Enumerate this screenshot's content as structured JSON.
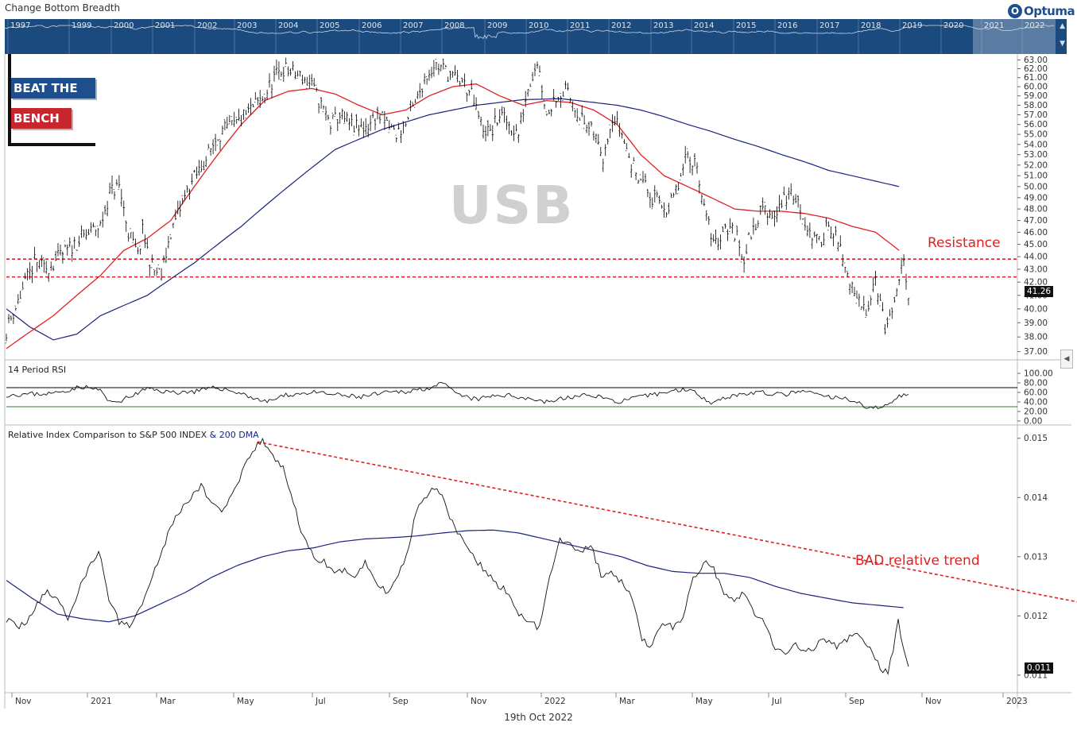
{
  "header": {
    "title": "Change Bottom Breadth",
    "logo_text": "Optuma",
    "logo_glyph": "O",
    "navigator_years": [
      "1997",
      "1999",
      "2000",
      "2001",
      "2002",
      "2003",
      "2004",
      "2005",
      "2006",
      "2007",
      "2008",
      "2009",
      "2010",
      "2011",
      "2012",
      "2013",
      "2014",
      "2015",
      "2016",
      "2017",
      "2018",
      "2019",
      "2020",
      "2021",
      "2022"
    ]
  },
  "branding": {
    "line1": "BEAT THE",
    "line2": "BENCH"
  },
  "colors": {
    "navbar": "#1b4a7e",
    "price": "#000000",
    "ma_short": "#e02020",
    "ma_long": "#1a237e",
    "resistance": "#e02020",
    "rsi_upper": "#000000",
    "rsi_lower": "#2e7d32"
  },
  "chart_data": [
    {
      "type": "line",
      "symbol": "USB",
      "price_tag": "41.26",
      "y_ticks": [
        "63.00",
        "62.00",
        "61.00",
        "60.00",
        "59.00",
        "58.00",
        "57.00",
        "56.00",
        "55.00",
        "54.00",
        "53.00",
        "52.00",
        "51.00",
        "50.00",
        "49.00",
        "48.00",
        "47.00",
        "46.00",
        "45.00",
        "44.00",
        "43.00",
        "42.00",
        "41.00",
        "40.00",
        "39.00",
        "38.00",
        "37.00"
      ],
      "ylim": [
        36.5,
        63.5
      ],
      "log_scale": true,
      "resistance_levels": [
        43.8,
        42.4
      ],
      "annotation": "Resistance",
      "anchors": [
        [
          0,
          38.5
        ],
        [
          3,
          41
        ],
        [
          6,
          43.5
        ],
        [
          8,
          43
        ],
        [
          10,
          43.5
        ],
        [
          13,
          44.5
        ],
        [
          16,
          45.5
        ],
        [
          20,
          46.5
        ],
        [
          22,
          49.5
        ],
        [
          24,
          50
        ],
        [
          26,
          46
        ],
        [
          28,
          44
        ],
        [
          29,
          46
        ],
        [
          31,
          43
        ],
        [
          33,
          42.5
        ],
        [
          35,
          46
        ],
        [
          37,
          48
        ],
        [
          39,
          50
        ],
        [
          41,
          51.5
        ],
        [
          43,
          53
        ],
        [
          45,
          55
        ],
        [
          47,
          55.5
        ],
        [
          49,
          56
        ],
        [
          51,
          57
        ],
        [
          53,
          58
        ],
        [
          55,
          59
        ],
        [
          57,
          61
        ],
        [
          59,
          62
        ],
        [
          61,
          61.5
        ],
        [
          63,
          61
        ],
        [
          65,
          60
        ],
        [
          67,
          58
        ],
        [
          69,
          56
        ],
        [
          71,
          57
        ],
        [
          73,
          56
        ],
        [
          75,
          55.5
        ],
        [
          77,
          56
        ],
        [
          79,
          57
        ],
        [
          81,
          56
        ],
        [
          83,
          55
        ],
        [
          85,
          56
        ],
        [
          87,
          58
        ],
        [
          89,
          61
        ],
        [
          91,
          62.5
        ],
        [
          93,
          62
        ],
        [
          95,
          61
        ],
        [
          97,
          60.5
        ],
        [
          99,
          59
        ],
        [
          101,
          56
        ],
        [
          103,
          55
        ],
        [
          105,
          57
        ],
        [
          107,
          56
        ],
        [
          109,
          55
        ],
        [
          111,
          60
        ],
        [
          113,
          63
        ],
        [
          115,
          57
        ],
        [
          117,
          59
        ],
        [
          119,
          59.5
        ],
        [
          121,
          58
        ],
        [
          123,
          56
        ],
        [
          125,
          55
        ],
        [
          127,
          53
        ],
        [
          129,
          57
        ],
        [
          131,
          55
        ],
        [
          133,
          52
        ],
        [
          135,
          51
        ],
        [
          137,
          49
        ],
        [
          139,
          48.5
        ],
        [
          141,
          48
        ],
        [
          143,
          50
        ],
        [
          145,
          53
        ],
        [
          147,
          52
        ],
        [
          149,
          47
        ],
        [
          151,
          45
        ],
        [
          153,
          46.5
        ],
        [
          155,
          46
        ],
        [
          157,
          44
        ],
        [
          159,
          46.5
        ],
        [
          161,
          48
        ],
        [
          163,
          47.5
        ],
        [
          165,
          48.5
        ],
        [
          167,
          49.5
        ],
        [
          169,
          48
        ],
        [
          171,
          46
        ],
        [
          173,
          45
        ],
        [
          175,
          47
        ],
        [
          177,
          45
        ],
        [
          179,
          42.5
        ],
        [
          181,
          40.5
        ],
        [
          183,
          40
        ],
        [
          185,
          42.5
        ],
        [
          187,
          38.5
        ],
        [
          189,
          40
        ],
        [
          191,
          43.8
        ],
        [
          192,
          41.26
        ]
      ],
      "ma50_anchors": [
        [
          0,
          37.2
        ],
        [
          10,
          39.5
        ],
        [
          20,
          42.5
        ],
        [
          25,
          44.5
        ],
        [
          30,
          45.5
        ],
        [
          35,
          47
        ],
        [
          40,
          50
        ],
        [
          45,
          53
        ],
        [
          50,
          56
        ],
        [
          55,
          58.5
        ],
        [
          60,
          59.5
        ],
        [
          65,
          59.8
        ],
        [
          70,
          59.2
        ],
        [
          75,
          58
        ],
        [
          80,
          57
        ],
        [
          85,
          57.5
        ],
        [
          90,
          59
        ],
        [
          95,
          60
        ],
        [
          100,
          60.3
        ],
        [
          105,
          59
        ],
        [
          110,
          58
        ],
        [
          115,
          58.5
        ],
        [
          120,
          58.3
        ],
        [
          125,
          57.5
        ],
        [
          130,
          56
        ],
        [
          135,
          53
        ],
        [
          140,
          51
        ],
        [
          145,
          50
        ],
        [
          150,
          49
        ],
        [
          155,
          48
        ],
        [
          160,
          47.8
        ],
        [
          165,
          47.8
        ],
        [
          170,
          47.6
        ],
        [
          175,
          47.2
        ],
        [
          180,
          46.5
        ],
        [
          185,
          46
        ],
        [
          190,
          44.5
        ]
      ],
      "ma200_anchors": [
        [
          0,
          40
        ],
        [
          5,
          38.7
        ],
        [
          10,
          37.8
        ],
        [
          15,
          38.2
        ],
        [
          20,
          39.5
        ],
        [
          30,
          41
        ],
        [
          40,
          43.5
        ],
        [
          50,
          46.5
        ],
        [
          60,
          50
        ],
        [
          70,
          53.5
        ],
        [
          80,
          55.5
        ],
        [
          90,
          57
        ],
        [
          100,
          58
        ],
        [
          110,
          58.6
        ],
        [
          118,
          58.7
        ],
        [
          125,
          58.3
        ],
        [
          130,
          58
        ],
        [
          135,
          57.5
        ],
        [
          140,
          56.8
        ],
        [
          145,
          56
        ],
        [
          150,
          55.3
        ],
        [
          155,
          54.5
        ],
        [
          160,
          53.8
        ],
        [
          165,
          53
        ],
        [
          170,
          52.3
        ],
        [
          175,
          51.5
        ],
        [
          180,
          51
        ],
        [
          185,
          50.5
        ],
        [
          190,
          50
        ]
      ]
    },
    {
      "type": "line",
      "title": "14 Period RSI",
      "y_ticks": [
        "100.00",
        "80.00",
        "60.00",
        "40.00",
        "20.00",
        "0.00"
      ],
      "ylim": [
        0,
        100
      ],
      "thresholds": [
        70,
        30
      ],
      "anchors": [
        [
          0,
          55
        ],
        [
          10,
          58
        ],
        [
          16,
          72
        ],
        [
          20,
          65
        ],
        [
          22,
          38
        ],
        [
          25,
          45
        ],
        [
          30,
          68
        ],
        [
          35,
          60
        ],
        [
          40,
          62
        ],
        [
          45,
          70
        ],
        [
          50,
          58
        ],
        [
          55,
          40
        ],
        [
          60,
          55
        ],
        [
          65,
          60
        ],
        [
          70,
          55
        ],
        [
          75,
          50
        ],
        [
          80,
          58
        ],
        [
          85,
          62
        ],
        [
          90,
          70
        ],
        [
          93,
          78
        ],
        [
          96,
          55
        ],
        [
          100,
          45
        ],
        [
          105,
          55
        ],
        [
          110,
          50
        ],
        [
          115,
          40
        ],
        [
          120,
          50
        ],
        [
          125,
          55
        ],
        [
          130,
          40
        ],
        [
          135,
          50
        ],
        [
          140,
          60
        ],
        [
          145,
          68
        ],
        [
          150,
          40
        ],
        [
          155,
          55
        ],
        [
          160,
          60
        ],
        [
          165,
          55
        ],
        [
          170,
          62
        ],
        [
          175,
          50
        ],
        [
          180,
          45
        ],
        [
          183,
          30
        ],
        [
          186,
          25
        ],
        [
          188,
          40
        ],
        [
          191,
          58
        ],
        [
          192,
          52
        ]
      ]
    },
    {
      "type": "line",
      "title": "Relative Index Comparison to S&P 500 INDEX",
      "legend_extra": "& 200 DMA",
      "y_ticks": [
        "0.015",
        "0.014",
        "0.013",
        "0.012",
        "0.011"
      ],
      "ylim": [
        0.01073,
        0.01505
      ],
      "price_tag": "0.011",
      "annotation": "BAD relative trend",
      "trendline": [
        [
          49,
          0.01494
        ],
        [
          230,
          0.01188
        ]
      ],
      "anchors": [
        [
          0,
          0.01195
        ],
        [
          2,
          0.0118
        ],
        [
          4,
          0.01192
        ],
        [
          6,
          0.0122
        ],
        [
          8,
          0.0124
        ],
        [
          10,
          0.0123
        ],
        [
          12,
          0.01195
        ],
        [
          14,
          0.0124
        ],
        [
          16,
          0.0128
        ],
        [
          18,
          0.0131
        ],
        [
          20,
          0.0123
        ],
        [
          22,
          0.0119
        ],
        [
          24,
          0.01185
        ],
        [
          26,
          0.0121
        ],
        [
          28,
          0.0126
        ],
        [
          30,
          0.013
        ],
        [
          32,
          0.0135
        ],
        [
          34,
          0.0138
        ],
        [
          36,
          0.014
        ],
        [
          38,
          0.0142
        ],
        [
          40,
          0.0139
        ],
        [
          42,
          0.0138
        ],
        [
          44,
          0.014
        ],
        [
          46,
          0.0144
        ],
        [
          48,
          0.0148
        ],
        [
          50,
          0.01495
        ],
        [
          52,
          0.0147
        ],
        [
          54,
          0.0145
        ],
        [
          56,
          0.0139
        ],
        [
          58,
          0.0133
        ],
        [
          60,
          0.013
        ],
        [
          62,
          0.0129
        ],
        [
          64,
          0.0127
        ],
        [
          66,
          0.0128
        ],
        [
          68,
          0.01265
        ],
        [
          70,
          0.0129
        ],
        [
          72,
          0.0126
        ],
        [
          74,
          0.0124
        ],
        [
          76,
          0.0126
        ],
        [
          78,
          0.013
        ],
        [
          80,
          0.0138
        ],
        [
          82,
          0.01405
        ],
        [
          84,
          0.0142
        ],
        [
          86,
          0.0138
        ],
        [
          88,
          0.0134
        ],
        [
          90,
          0.0131
        ],
        [
          92,
          0.0129
        ],
        [
          94,
          0.0127
        ],
        [
          96,
          0.0125
        ],
        [
          98,
          0.0124
        ],
        [
          100,
          0.012
        ],
        [
          102,
          0.0119
        ],
        [
          104,
          0.0118
        ],
        [
          106,
          0.0127
        ],
        [
          108,
          0.0133
        ],
        [
          110,
          0.0132
        ],
        [
          112,
          0.0131
        ],
        [
          114,
          0.0132
        ],
        [
          116,
          0.0127
        ],
        [
          118,
          0.0127
        ],
        [
          120,
          0.0126
        ],
        [
          122,
          0.0123
        ],
        [
          124,
          0.0116
        ],
        [
          126,
          0.0115
        ],
        [
          128,
          0.0119
        ],
        [
          130,
          0.0118
        ],
        [
          132,
          0.012
        ],
        [
          134,
          0.0126
        ],
        [
          136,
          0.0129
        ],
        [
          138,
          0.0128
        ],
        [
          140,
          0.0124
        ],
        [
          142,
          0.0123
        ],
        [
          144,
          0.0124
        ],
        [
          146,
          0.012
        ],
        [
          148,
          0.0119
        ],
        [
          150,
          0.0114
        ],
        [
          152,
          0.0114
        ],
        [
          154,
          0.0115
        ],
        [
          156,
          0.0114
        ],
        [
          158,
          0.0115
        ],
        [
          160,
          0.0116
        ],
        [
          162,
          0.0115
        ],
        [
          164,
          0.0116
        ],
        [
          166,
          0.0117
        ],
        [
          168,
          0.0115
        ],
        [
          170,
          0.0112
        ],
        [
          172,
          0.011
        ],
        [
          174,
          0.0119
        ],
        [
          176,
          0.0111
        ]
      ],
      "dma_anchors": [
        [
          0,
          0.0126
        ],
        [
          5,
          0.0123
        ],
        [
          10,
          0.01203
        ],
        [
          15,
          0.01195
        ],
        [
          20,
          0.0119
        ],
        [
          25,
          0.012
        ],
        [
          30,
          0.0122
        ],
        [
          35,
          0.0124
        ],
        [
          40,
          0.01265
        ],
        [
          45,
          0.01285
        ],
        [
          50,
          0.013
        ],
        [
          55,
          0.0131
        ],
        [
          60,
          0.01315
        ],
        [
          65,
          0.01325
        ],
        [
          70,
          0.0133
        ],
        [
          75,
          0.01332
        ],
        [
          80,
          0.01335
        ],
        [
          85,
          0.0134
        ],
        [
          90,
          0.01344
        ],
        [
          95,
          0.01345
        ],
        [
          100,
          0.0134
        ],
        [
          105,
          0.0133
        ],
        [
          110,
          0.0132
        ],
        [
          115,
          0.0131
        ],
        [
          120,
          0.013
        ],
        [
          125,
          0.01285
        ],
        [
          130,
          0.01275
        ],
        [
          135,
          0.01272
        ],
        [
          140,
          0.01272
        ],
        [
          145,
          0.01265
        ],
        [
          150,
          0.0125
        ],
        [
          155,
          0.01238
        ],
        [
          160,
          0.0123
        ],
        [
          165,
          0.01222
        ],
        [
          170,
          0.01218
        ],
        [
          175,
          0.01214
        ]
      ]
    }
  ],
  "x_axis": {
    "labels": [
      "Nov",
      "2021",
      "Mar",
      "May",
      "Jul",
      "Sep",
      "Nov",
      "2022",
      "Mar",
      "May",
      "Jul",
      "Sep",
      "Nov",
      "2023"
    ]
  },
  "footer": {
    "date": "19th Oct 2022"
  }
}
